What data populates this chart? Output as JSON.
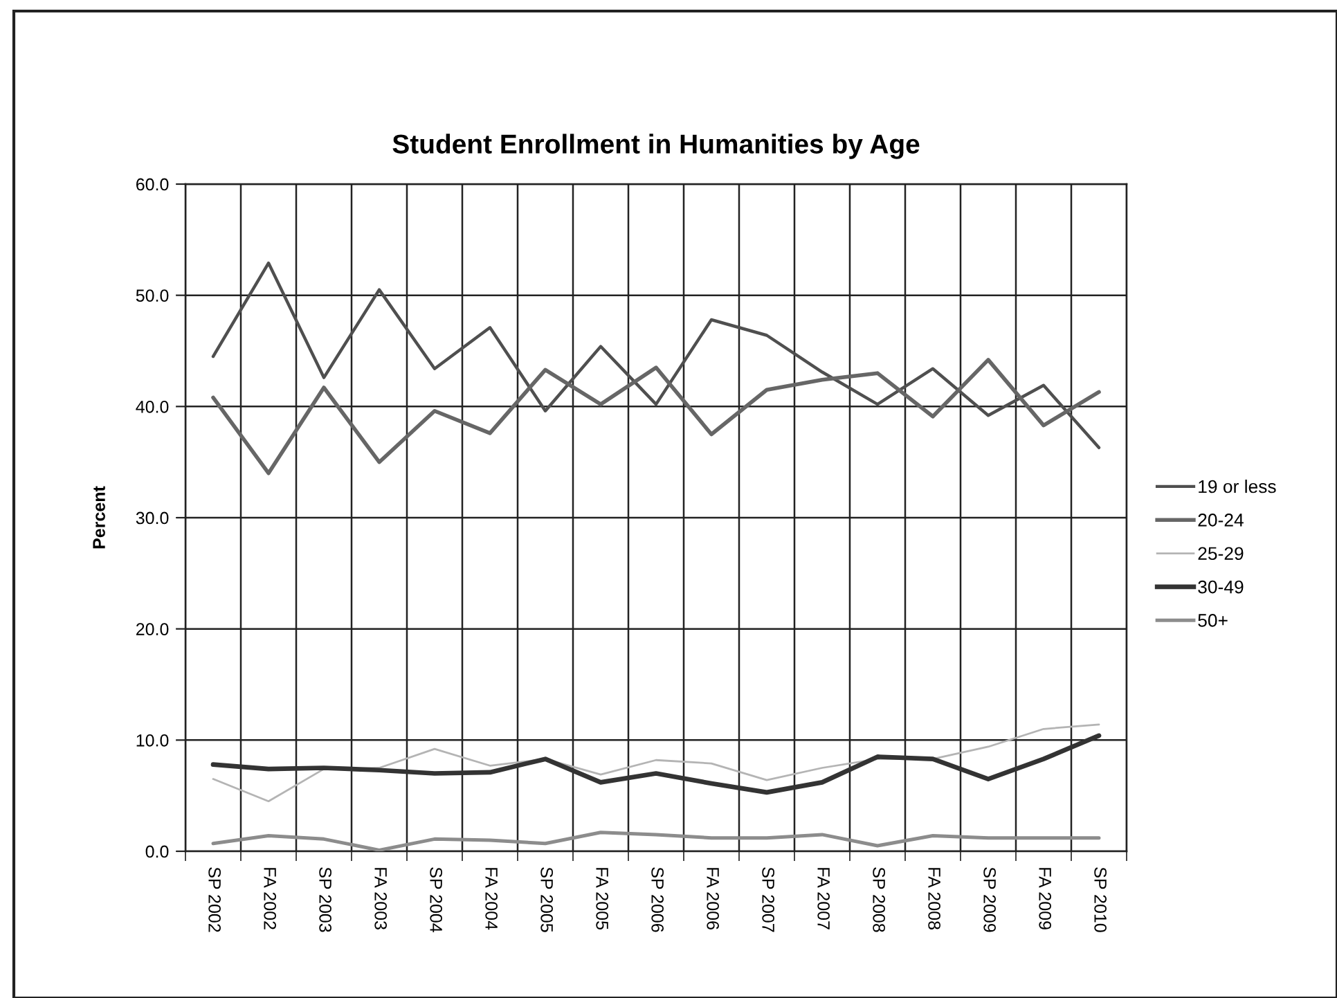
{
  "chart_data": {
    "type": "line",
    "title": "Student Enrollment in Humanities by Age",
    "ylabel": "Percent",
    "categories": [
      "SP 2002",
      "FA 2002",
      "SP 2003",
      "FA 2003",
      "SP 2004",
      "FA 2004",
      "SP 2005",
      "FA 2005",
      "SP 2006",
      "FA 2006",
      "SP 2007",
      "FA 2007",
      "SP 2008",
      "FA 2008",
      "SP 2009",
      "FA 2009",
      "SP 2010"
    ],
    "series": [
      {
        "name": "19 or less",
        "color": "#4f4f4f",
        "values": [
          44.5,
          52.9,
          42.6,
          50.5,
          43.4,
          47.1,
          39.6,
          45.4,
          40.2,
          47.8,
          46.4,
          43.1,
          40.2,
          43.4,
          39.2,
          41.9,
          36.3
        ]
      },
      {
        "name": "20-24",
        "color": "#666666",
        "values": [
          40.8,
          34.0,
          41.7,
          35.0,
          39.6,
          37.6,
          43.3,
          40.2,
          43.5,
          37.5,
          41.5,
          42.4,
          43.0,
          39.1,
          44.2,
          38.3,
          41.3
        ]
      },
      {
        "name": "25-29",
        "color": "#b4b4b4",
        "values": [
          6.5,
          4.5,
          7.4,
          7.5,
          9.2,
          7.7,
          8.3,
          6.9,
          8.2,
          7.9,
          6.4,
          7.5,
          8.3,
          8.3,
          9.4,
          11.0,
          11.4
        ]
      },
      {
        "name": "30-49",
        "color": "#333333",
        "values": [
          7.8,
          7.4,
          7.5,
          7.3,
          7.0,
          7.1,
          8.3,
          6.2,
          7.0,
          6.1,
          5.3,
          6.2,
          8.5,
          8.3,
          6.5,
          8.3,
          10.4
        ]
      },
      {
        "name": "50+",
        "color": "#8c8c8c",
        "values": [
          0.7,
          1.4,
          1.1,
          0.1,
          1.1,
          1.0,
          0.7,
          1.7,
          1.5,
          1.2,
          1.2,
          1.5,
          0.5,
          1.4,
          1.2,
          1.2,
          1.2
        ]
      }
    ],
    "ylim": [
      0,
      60
    ],
    "yticks": [
      {
        "value": 0,
        "label": "0.0"
      },
      {
        "value": 10,
        "label": "10.0"
      },
      {
        "value": 20,
        "label": "20.0"
      },
      {
        "value": 30,
        "label": "30.0"
      },
      {
        "value": 40,
        "label": "40.0"
      },
      {
        "value": 50,
        "label": "50.0"
      },
      {
        "value": 60,
        "label": "60.0"
      }
    ],
    "grid": true,
    "legend": "right",
    "marker": "none",
    "line_style": "solid"
  }
}
